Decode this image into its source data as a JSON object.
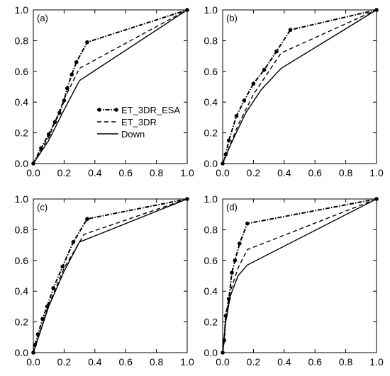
{
  "chart_data": [
    {
      "type": "line",
      "panel_label": "(a)",
      "xlim": [
        0,
        1
      ],
      "ylim": [
        0,
        1
      ],
      "xticks": [
        "0.0",
        "0.2",
        "0.4",
        "0.6",
        "0.8",
        "1.0"
      ],
      "yticks": [
        "0.0",
        "0.2",
        "0.4",
        "0.6",
        "0.8",
        "1.0"
      ],
      "legend": {
        "placement": "center-right",
        "entries": [
          "ET_3DR_ESA",
          "ET_3DR",
          "Down"
        ]
      },
      "series": [
        {
          "name": "ET_3DR_ESA",
          "style": "dash-dot-markers",
          "x": [
            0,
            0.05,
            0.1,
            0.14,
            0.17,
            0.2,
            0.22,
            0.25,
            0.28,
            0.35,
            1.0
          ],
          "y": [
            0,
            0.1,
            0.19,
            0.27,
            0.33,
            0.41,
            0.49,
            0.58,
            0.66,
            0.79,
            1.0
          ]
        },
        {
          "name": "ET_3DR",
          "style": "dashed",
          "x": [
            0,
            0.1,
            0.2,
            0.3,
            1.0
          ],
          "y": [
            0,
            0.17,
            0.42,
            0.62,
            1.0
          ]
        },
        {
          "name": "Down",
          "style": "solid",
          "x": [
            0,
            0.1,
            0.2,
            0.3,
            1.0
          ],
          "y": [
            0,
            0.15,
            0.35,
            0.54,
            1.0
          ]
        }
      ]
    },
    {
      "type": "line",
      "panel_label": "(b)",
      "xlim": [
        0,
        1
      ],
      "ylim": [
        0,
        1
      ],
      "xticks": [
        "0.0",
        "0.2",
        "0.4",
        "0.6",
        "0.8",
        "1.0"
      ],
      "yticks": [
        "0.0",
        "0.2",
        "0.4",
        "0.6",
        "0.8",
        "1.0"
      ],
      "series": [
        {
          "name": "ET_3DR_ESA",
          "style": "dash-dot-markers",
          "x": [
            0,
            0.02,
            0.04,
            0.09,
            0.14,
            0.2,
            0.27,
            0.35,
            0.44,
            1.0
          ],
          "y": [
            0,
            0.06,
            0.15,
            0.31,
            0.41,
            0.52,
            0.61,
            0.73,
            0.87,
            1.0
          ]
        },
        {
          "name": "ET_3DR",
          "style": "dashed",
          "x": [
            0,
            0.1,
            0.2,
            0.38,
            1.0
          ],
          "y": [
            0,
            0.25,
            0.45,
            0.72,
            1.0
          ]
        },
        {
          "name": "Down",
          "style": "solid",
          "x": [
            0,
            0.05,
            0.15,
            0.25,
            0.38,
            1.0
          ],
          "y": [
            0,
            0.12,
            0.33,
            0.48,
            0.62,
            1.0
          ]
        }
      ]
    },
    {
      "type": "line",
      "panel_label": "(c)",
      "xlim": [
        0,
        1
      ],
      "ylim": [
        0,
        1
      ],
      "xticks": [
        "0.0",
        "0.2",
        "0.4",
        "0.6",
        "0.8",
        "1.0"
      ],
      "yticks": [
        "0.0",
        "0.2",
        "0.4",
        "0.6",
        "0.8",
        "1.0"
      ],
      "series": [
        {
          "name": "ET_3DR_ESA",
          "style": "dash-dot-markers",
          "x": [
            0,
            0.01,
            0.03,
            0.06,
            0.09,
            0.13,
            0.19,
            0.26,
            0.35,
            1.0
          ],
          "y": [
            0,
            0.05,
            0.12,
            0.22,
            0.3,
            0.42,
            0.56,
            0.72,
            0.87,
            1.0
          ]
        },
        {
          "name": "ET_3DR",
          "style": "dashed",
          "x": [
            0,
            0.1,
            0.2,
            0.33,
            1.0
          ],
          "y": [
            0,
            0.31,
            0.55,
            0.77,
            1.0
          ]
        },
        {
          "name": "Down",
          "style": "solid",
          "x": [
            0,
            0.1,
            0.2,
            0.3,
            1.0
          ],
          "y": [
            0,
            0.3,
            0.53,
            0.72,
            1.0
          ]
        }
      ]
    },
    {
      "type": "line",
      "panel_label": "(d)",
      "xlim": [
        0,
        1
      ],
      "ylim": [
        0,
        1
      ],
      "xticks": [
        "0.0",
        "0.2",
        "0.4",
        "0.6",
        "0.8",
        "1.0"
      ],
      "yticks": [
        "0.0",
        "0.2",
        "0.4",
        "0.6",
        "0.8",
        "1.0"
      ],
      "series": [
        {
          "name": "ET_3DR_ESA",
          "style": "dash-dot-markers",
          "x": [
            0,
            0.01,
            0.02,
            0.04,
            0.06,
            0.08,
            0.11,
            0.16,
            1.0
          ],
          "y": [
            0,
            0.08,
            0.24,
            0.35,
            0.52,
            0.6,
            0.71,
            0.84,
            1.0
          ]
        },
        {
          "name": "ET_3DR",
          "style": "dashed",
          "x": [
            0,
            0.02,
            0.05,
            0.1,
            0.16,
            1.0
          ],
          "y": [
            0,
            0.22,
            0.4,
            0.55,
            0.67,
            1.0
          ]
        },
        {
          "name": "Down",
          "style": "solid",
          "x": [
            0,
            0.02,
            0.05,
            0.1,
            0.16,
            1.0
          ],
          "y": [
            0,
            0.2,
            0.37,
            0.5,
            0.57,
            1.0
          ]
        }
      ]
    }
  ]
}
